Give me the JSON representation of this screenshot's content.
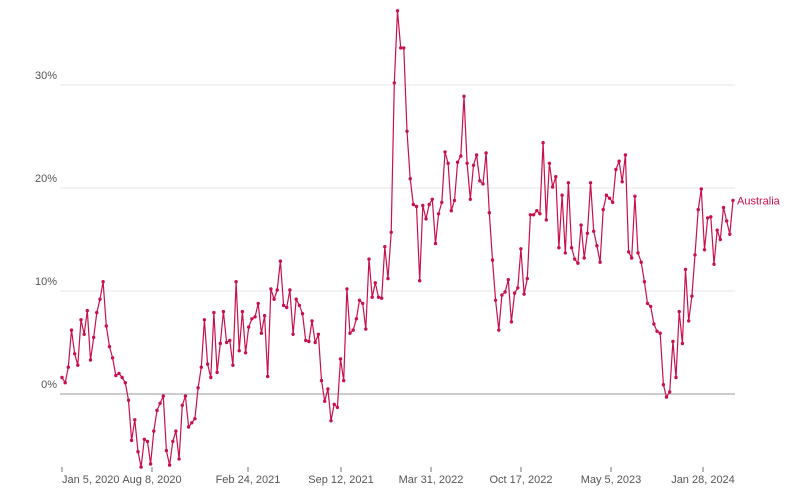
{
  "chart_data": {
    "type": "line",
    "x_ticks": [
      "Jan 5, 2020",
      "Aug 8, 2020",
      "Feb 24, 2021",
      "Sep 12, 2021",
      "Mar 31, 2022",
      "Oct 17, 2022",
      "May 5, 2023",
      "Jan 28, 2024"
    ],
    "y_ticks": [
      "0%",
      "10%",
      "20%",
      "30%"
    ],
    "ylim": [
      -7,
      37
    ],
    "grid": "horizontal",
    "colors": {
      "series": "#c8104b",
      "grid": "#e6e6e6",
      "zero_line": "#9a9a9a",
      "tick_text": "#555555"
    },
    "series": [
      {
        "name": "Australia",
        "values": [
          1.6,
          1.1,
          2.6,
          6.2,
          3.9,
          2.8,
          7.2,
          5.8,
          8.1,
          3.3,
          5.5,
          7.9,
          9.2,
          10.9,
          6.6,
          4.6,
          3.5,
          1.8,
          2.0,
          1.6,
          1.1,
          -0.6,
          -4.5,
          -2.5,
          -5.6,
          -7.1,
          -4.4,
          -4.6,
          -6.8,
          -3.6,
          -1.6,
          -0.9,
          -0.2,
          -5.5,
          -6.9,
          -4.6,
          -3.6,
          -6.3,
          -1.1,
          -0.2,
          -3.2,
          -2.8,
          -2.4,
          0.6,
          2.6,
          7.2,
          2.9,
          1.6,
          7.9,
          2.1,
          4.9,
          8.0,
          5.0,
          5.2,
          2.8,
          10.9,
          4.2,
          8.0,
          4.0,
          6.5,
          7.3,
          7.5,
          8.8,
          5.9,
          7.6,
          1.7,
          10.2,
          9.2,
          10.1,
          12.9,
          8.6,
          8.4,
          10.1,
          5.8,
          9.2,
          8.6,
          7.8,
          5.2,
          5.1,
          7.1,
          5.0,
          5.8,
          1.3,
          -0.7,
          0.5,
          -2.6,
          -1.0,
          -1.3,
          3.4,
          1.3,
          10.2,
          5.9,
          6.2,
          7.3,
          9.1,
          8.8,
          6.3,
          13.1,
          9.4,
          10.8,
          9.4,
          9.3,
          14.3,
          11.2,
          15.7,
          30.2,
          37.2,
          33.6,
          33.6,
          25.5,
          20.9,
          18.4,
          18.2,
          11.0,
          18.3,
          17.0,
          18.4,
          18.9,
          14.6,
          17.5,
          18.6,
          23.5,
          22.4,
          17.8,
          18.8,
          22.5,
          23.1,
          28.9,
          22.4,
          18.9,
          22.2,
          23.2,
          20.7,
          20.4,
          23.4,
          17.6,
          13.0,
          9.1,
          6.2,
          9.6,
          9.9,
          11.1,
          7.0,
          9.8,
          10.3,
          14.1,
          9.7,
          11.2,
          17.4,
          17.4,
          17.8,
          17.5,
          24.4,
          16.9,
          22.4,
          20.1,
          21.1,
          14.2,
          19.3,
          13.7,
          20.5,
          14.2,
          13.1,
          12.7,
          16.4,
          13.2,
          15.6,
          20.5,
          15.8,
          14.4,
          12.8,
          17.9,
          19.3,
          19.0,
          18.6,
          21.8,
          22.6,
          20.6,
          23.2,
          13.8,
          13.2,
          19.2,
          13.7,
          12.8,
          10.9,
          8.8,
          8.5,
          6.8,
          6.1,
          5.9,
          0.9,
          -0.3,
          0.2,
          5.1,
          1.6,
          8.0,
          4.9,
          12.1,
          7.1,
          9.5,
          13.5,
          17.9,
          19.9,
          14.0,
          17.1,
          17.2,
          12.6,
          15.9,
          15.0,
          18.1,
          16.8,
          15.5,
          18.8
        ]
      }
    ]
  }
}
